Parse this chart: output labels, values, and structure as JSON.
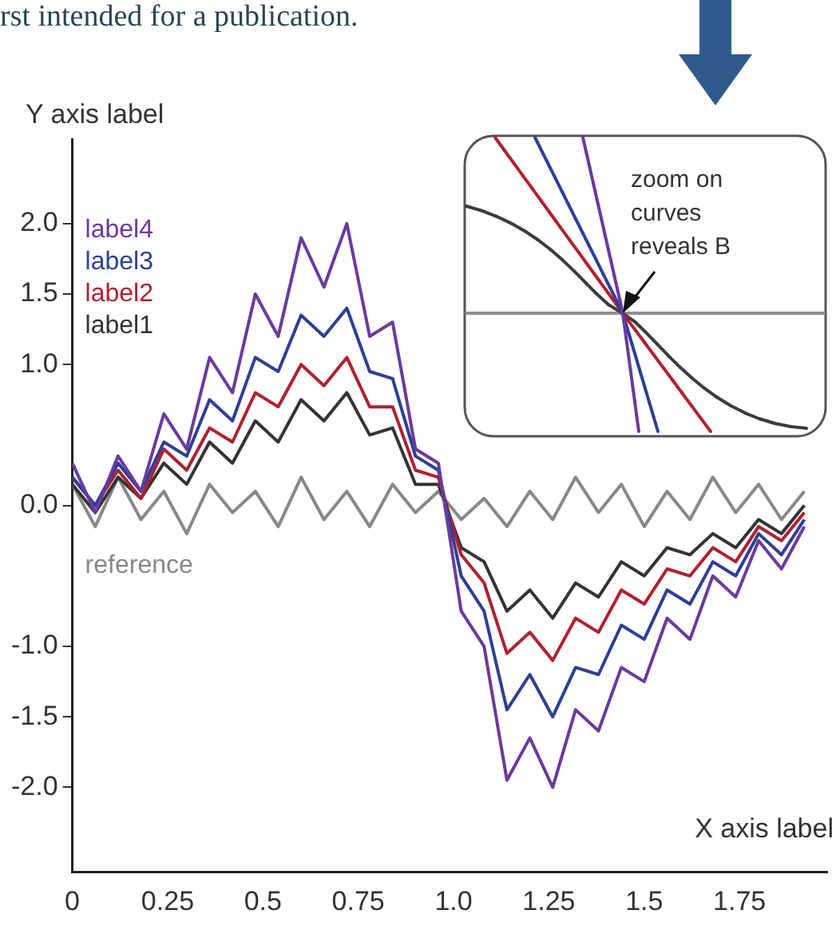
{
  "chart_data": {
    "type": "line",
    "xlabel": "X axis label",
    "ylabel": "Y axis label",
    "annotations": [
      "rst intended for a publication.",
      "zoom on curves reveals B"
    ],
    "x": [
      0,
      0.06,
      0.12,
      0.18,
      0.24,
      0.3,
      0.36,
      0.42,
      0.48,
      0.54,
      0.6,
      0.66,
      0.72,
      0.78,
      0.84,
      0.9,
      0.96,
      1.02,
      1.08,
      1.14,
      1.2,
      1.26,
      1.32,
      1.38,
      1.44,
      1.5,
      1.56,
      1.62,
      1.68,
      1.74,
      1.8,
      1.86,
      1.92
    ],
    "series": [
      {
        "name": "label4",
        "color": "#6a3a9e",
        "values": [
          0.3,
          -0.05,
          0.35,
          0.1,
          0.65,
          0.4,
          1.05,
          0.8,
          1.5,
          1.2,
          1.9,
          1.55,
          2.0,
          1.2,
          1.3,
          0.4,
          0.3,
          -0.75,
          -1.0,
          -1.95,
          -1.65,
          -2.0,
          -1.45,
          -1.6,
          -1.15,
          -1.25,
          -0.8,
          -0.95,
          -0.5,
          -0.65,
          -0.25,
          -0.45,
          -0.15
        ]
      },
      {
        "name": "label3",
        "color": "#2e3f94",
        "values": [
          0.2,
          0.0,
          0.3,
          0.1,
          0.45,
          0.35,
          0.75,
          0.6,
          1.05,
          0.95,
          1.35,
          1.2,
          1.4,
          0.95,
          0.9,
          0.35,
          0.25,
          -0.5,
          -0.75,
          -1.45,
          -1.2,
          -1.5,
          -1.15,
          -1.2,
          -0.85,
          -0.95,
          -0.6,
          -0.7,
          -0.4,
          -0.5,
          -0.2,
          -0.35,
          -0.1
        ]
      },
      {
        "name": "label2",
        "color": "#b0202e",
        "values": [
          0.2,
          0.0,
          0.25,
          0.05,
          0.4,
          0.25,
          0.55,
          0.45,
          0.8,
          0.7,
          1.0,
          0.85,
          1.05,
          0.7,
          0.7,
          0.25,
          0.2,
          -0.35,
          -0.55,
          -1.05,
          -0.9,
          -1.1,
          -0.8,
          -0.9,
          -0.6,
          -0.7,
          -0.45,
          -0.5,
          -0.3,
          -0.4,
          -0.15,
          -0.25,
          -0.05
        ]
      },
      {
        "name": "label1",
        "color": "#333333",
        "values": [
          0.15,
          -0.05,
          0.2,
          0.05,
          0.3,
          0.15,
          0.45,
          0.3,
          0.6,
          0.45,
          0.75,
          0.6,
          0.8,
          0.5,
          0.55,
          0.15,
          0.15,
          -0.3,
          -0.4,
          -0.75,
          -0.6,
          -0.8,
          -0.55,
          -0.65,
          -0.4,
          -0.5,
          -0.3,
          -0.35,
          -0.2,
          -0.3,
          -0.1,
          -0.2,
          0.0
        ]
      },
      {
        "name": "reference",
        "color": "#888888",
        "values": [
          0.15,
          -0.15,
          0.2,
          -0.1,
          0.1,
          -0.2,
          0.15,
          -0.05,
          0.1,
          -0.15,
          0.2,
          -0.1,
          0.1,
          -0.15,
          0.15,
          -0.05,
          0.1,
          -0.1,
          0.05,
          -0.15,
          0.1,
          -0.1,
          0.2,
          -0.05,
          0.15,
          -0.15,
          0.1,
          -0.1,
          0.2,
          -0.05,
          0.15,
          -0.1,
          0.1
        ]
      }
    ],
    "xlim": [
      0,
      1.98
    ],
    "xticks": [
      0,
      0.25,
      0.5,
      0.75,
      {
        "value": 1,
        "label": "1.0"
      },
      1.25,
      1.5,
      1.75
    ],
    "ylim": [
      -2.6,
      2.6
    ],
    "yticks": [
      {
        "value": -2,
        "label": "-2.0"
      },
      -1.5,
      {
        "value": -1,
        "label": "-1.0"
      },
      {
        "value": 0,
        "label": "0.0"
      },
      {
        "value": 1,
        "label": "1.0"
      },
      1.5,
      {
        "value": 2,
        "label": "2.0"
      }
    ],
    "grid": false,
    "legend": "top left",
    "marker": "none",
    "line_style": "solid"
  }
}
